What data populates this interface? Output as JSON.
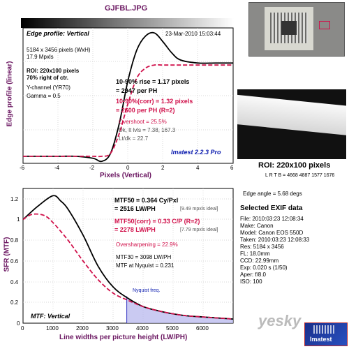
{
  "filename": "GJFBL.JPG",
  "edge": {
    "title": "Edge profile: Vertical",
    "datetime": "23-Mar-2010 15:03:44",
    "dims": "5184 x 3456 pixels (WxH)",
    "mpxls": "17.9 Mpxls",
    "roi": "ROI: 220x100 pixels",
    "roi_pos": "70% right of ctr.",
    "channel": "Y-channel (YR70)",
    "gamma": "Gamma = 0.5",
    "rise": "10-90% rise = 1.17 pixels",
    "rise_ph": "= 2947 per PH",
    "rise_corr": "10-90%(corr) = 1.32 pixels",
    "rise_corr_ph": "= 2600 per PH  (R=2)",
    "overshoot": "Overshoot = 25.5%",
    "dk": "Dk, lt lvls = 7.38, 167.3",
    "ltdk": "Lt/dk = 22.7",
    "version": "Imatest 2.2.3 Pro",
    "xlabel": "Pixels (Vertical)",
    "ylabel": "Edge profile (linear)",
    "xticks": [
      "-6",
      "-4",
      "-2",
      "0",
      "2",
      "4",
      "6"
    ]
  },
  "mtf": {
    "mtf50": "MTF50 = 0.364 Cy/Pxl",
    "mtf50_lw": "= 2516 LW/PH",
    "mtf50_ideal": "[9.49 mpxls ideal]",
    "mtf50c": "MTF50(corr) = 0.33 C/P  (R=2)",
    "mtf50c_lw": "= 2278 LW/PH",
    "mtf50c_ideal": "[7.79 mpxls ideal]",
    "oversharp": "Oversharpening = 22.9%",
    "mtf30": "MTF30 = 3098 LW/PH",
    "nyquist_mtf": "MTF at Nyquist = 0.231",
    "nyquist_label": "Nyquist freq.",
    "label": "MTF: Vertical",
    "xlabel": "Line widths per picture height (LW/PH)",
    "ylabel": "SFR (MTF)",
    "xticks": [
      "0",
      "1000",
      "2000",
      "3000",
      "4000",
      "5000",
      "6000"
    ],
    "yticks": [
      "0",
      "0.2",
      "0.4",
      "0.6",
      "0.8",
      "1",
      "1.2"
    ]
  },
  "side": {
    "roi_title": "ROI: 220x100 pixels",
    "roi_coords": "L R T B = 4668 4887  1577 1676",
    "edge_angle": "Edge angle = 5.68 degs",
    "exif_title": "Selected EXIF data",
    "exif": [
      "File:  2010:03:23 12:08:34",
      "Make:  Canon",
      "Model:  Canon EOS 550D",
      "Taken: 2010:03:23 12:08:33",
      "Res:   5184 x 3456",
      "FL:    18.0mm",
      "CCD:   22.99mm",
      "Exp:   0.020 s  (1/50)",
      "Aper:  f/8.0",
      "ISO:   100"
    ],
    "brand": "Imatest",
    "watermark": "yesky"
  },
  "colors": {
    "measured": "#000000",
    "corrected": "#d0104a",
    "nyquist_fill": "#b8b8ee"
  },
  "chart_data": [
    {
      "type": "line",
      "title": "Edge profile: Vertical",
      "xlabel": "Pixels (Vertical)",
      "ylabel": "Edge profile (linear)",
      "xlim": [
        -6,
        6
      ],
      "series": [
        {
          "x": [
            -6,
            -4,
            -3,
            -2,
            -1.5,
            -1,
            -0.5,
            0,
            0.5,
            1,
            1.5,
            2,
            2.5,
            3,
            4,
            5,
            6
          ],
          "y": [
            0.02,
            0.02,
            0.02,
            0.0,
            -0.03,
            0.05,
            0.35,
            0.78,
            1.08,
            1.22,
            1.25,
            1.16,
            1.05,
            0.98,
            0.95,
            0.95,
            0.95
          ]
        },
        {
          "x": [
            -6,
            -4,
            -3,
            -2,
            -1.5,
            -1,
            -0.5,
            0,
            0.5,
            1,
            1.5,
            2,
            2.5,
            3,
            4,
            5,
            6
          ],
          "y": [
            0.02,
            0.02,
            0.02,
            0.02,
            0.02,
            0.05,
            0.25,
            0.55,
            0.8,
            0.9,
            0.93,
            0.93,
            0.93,
            0.93,
            0.93,
            0.93,
            0.93
          ]
        }
      ]
    },
    {
      "type": "line",
      "xlabel": "Line widths per picture height (LW/PH)",
      "ylabel": "SFR (MTF)",
      "xlim": [
        0,
        7000
      ],
      "ylim": [
        0,
        1.3
      ],
      "series": [
        {
          "x": [
            0,
            500,
            1000,
            1250,
            1500,
            2000,
            2500,
            3000,
            3500,
            4000,
            4500,
            5000,
            5500,
            6000,
            6500,
            7000
          ],
          "y": [
            1.0,
            1.13,
            1.23,
            1.18,
            1.1,
            0.85,
            0.55,
            0.35,
            0.24,
            0.16,
            0.12,
            0.09,
            0.07,
            0.06,
            0.05,
            0.04
          ]
        },
        {
          "x": [
            0,
            300,
            700,
            1000,
            1500,
            2000,
            2500,
            3000,
            3500,
            4000,
            4500,
            5000,
            5500,
            6000,
            6500,
            7000
          ],
          "y": [
            1.0,
            1.05,
            1.04,
            0.97,
            0.8,
            0.6,
            0.42,
            0.29,
            0.22,
            0.16,
            0.12,
            0.09,
            0.07,
            0.06,
            0.05,
            0.04
          ]
        }
      ],
      "nyquist_x": 3456
    }
  ]
}
